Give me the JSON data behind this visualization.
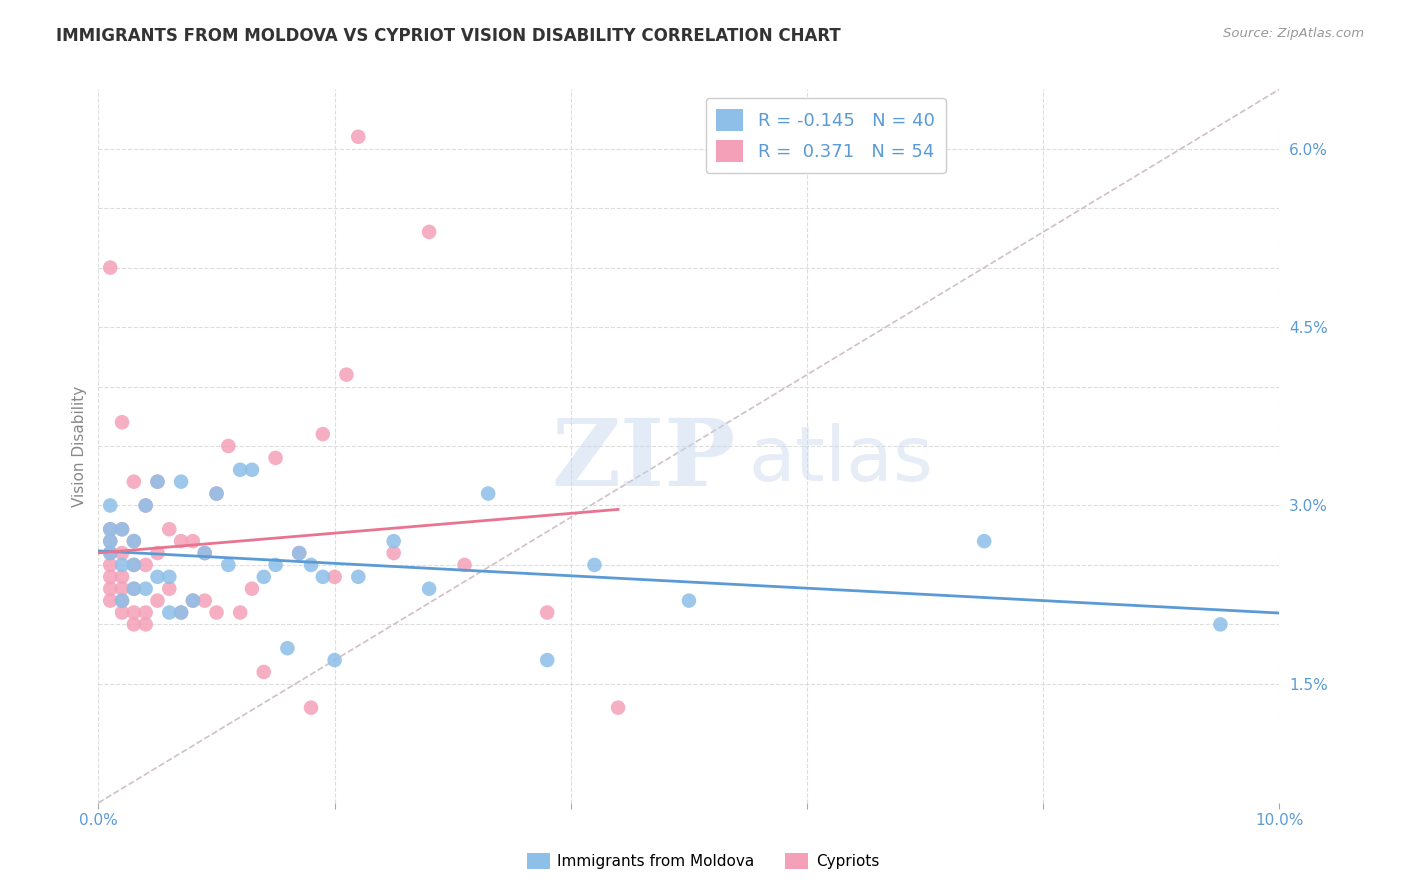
{
  "title": "IMMIGRANTS FROM MOLDOVA VS CYPRIOT VISION DISABILITY CORRELATION CHART",
  "source": "Source: ZipAtlas.com",
  "ylabel": "Vision Disability",
  "x_min": 0.0,
  "x_max": 0.1,
  "y_min": 0.005,
  "y_max": 0.065,
  "x_ticks": [
    0.0,
    0.02,
    0.04,
    0.06,
    0.08,
    0.1
  ],
  "x_tick_labels": [
    "0.0%",
    "",
    "",
    "",
    "",
    "10.0%"
  ],
  "y_ticks_labeled": [
    0.015,
    0.03,
    0.045,
    0.06
  ],
  "y_tick_labels": [
    "1.5%",
    "3.0%",
    "4.5%",
    "6.0%"
  ],
  "y_ticks_grid": [
    0.015,
    0.02,
    0.025,
    0.03,
    0.035,
    0.04,
    0.045,
    0.05,
    0.055,
    0.06
  ],
  "blue_R": "-0.145",
  "blue_N": "40",
  "pink_R": "0.371",
  "pink_N": "54",
  "blue_color": "#8DBFE8",
  "pink_color": "#F4A0B8",
  "blue_line_color": "#5B9BD5",
  "pink_line_color": "#E8748F",
  "diagonal_line_color": "#D0C0C8",
  "watermark_zip": "ZIP",
  "watermark_atlas": "atlas",
  "blue_scatter_x": [
    0.001,
    0.001,
    0.001,
    0.001,
    0.002,
    0.002,
    0.002,
    0.003,
    0.003,
    0.003,
    0.004,
    0.004,
    0.005,
    0.005,
    0.006,
    0.006,
    0.007,
    0.007,
    0.008,
    0.009,
    0.01,
    0.011,
    0.012,
    0.013,
    0.014,
    0.015,
    0.016,
    0.017,
    0.018,
    0.019,
    0.02,
    0.022,
    0.025,
    0.028,
    0.033,
    0.038,
    0.042,
    0.05,
    0.075,
    0.095
  ],
  "blue_scatter_y": [
    0.026,
    0.027,
    0.028,
    0.03,
    0.022,
    0.025,
    0.028,
    0.023,
    0.025,
    0.027,
    0.023,
    0.03,
    0.024,
    0.032,
    0.021,
    0.024,
    0.021,
    0.032,
    0.022,
    0.026,
    0.031,
    0.025,
    0.033,
    0.033,
    0.024,
    0.025,
    0.018,
    0.026,
    0.025,
    0.024,
    0.017,
    0.024,
    0.027,
    0.023,
    0.031,
    0.017,
    0.025,
    0.022,
    0.027,
    0.02
  ],
  "pink_scatter_x": [
    0.001,
    0.001,
    0.001,
    0.001,
    0.001,
    0.001,
    0.001,
    0.001,
    0.002,
    0.002,
    0.002,
    0.002,
    0.002,
    0.002,
    0.002,
    0.003,
    0.003,
    0.003,
    0.003,
    0.003,
    0.003,
    0.004,
    0.004,
    0.004,
    0.004,
    0.005,
    0.005,
    0.005,
    0.006,
    0.006,
    0.007,
    0.007,
    0.008,
    0.008,
    0.009,
    0.009,
    0.01,
    0.01,
    0.011,
    0.012,
    0.013,
    0.014,
    0.015,
    0.017,
    0.018,
    0.019,
    0.02,
    0.021,
    0.022,
    0.025,
    0.028,
    0.031,
    0.038,
    0.044
  ],
  "pink_scatter_y": [
    0.022,
    0.023,
    0.024,
    0.025,
    0.026,
    0.027,
    0.028,
    0.05,
    0.021,
    0.022,
    0.023,
    0.024,
    0.026,
    0.028,
    0.037,
    0.02,
    0.021,
    0.023,
    0.025,
    0.027,
    0.032,
    0.02,
    0.021,
    0.025,
    0.03,
    0.022,
    0.026,
    0.032,
    0.023,
    0.028,
    0.021,
    0.027,
    0.022,
    0.027,
    0.022,
    0.026,
    0.021,
    0.031,
    0.035,
    0.021,
    0.023,
    0.016,
    0.034,
    0.026,
    0.013,
    0.036,
    0.024,
    0.041,
    0.061,
    0.026,
    0.053,
    0.025,
    0.021,
    0.013
  ],
  "background_color": "#FFFFFF",
  "grid_color": "#DDDDDD",
  "legend_label_blue": "Immigrants from Moldova",
  "legend_label_pink": "Cypriots",
  "blue_line_x_end": 0.1,
  "pink_line_x_end": 0.044
}
